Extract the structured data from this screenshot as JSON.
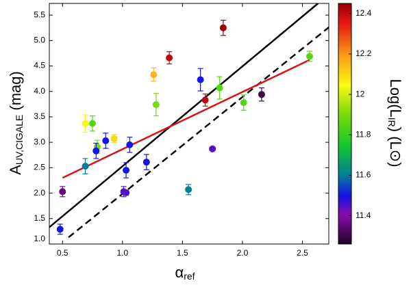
{
  "chart_data": {
    "type": "scatter",
    "x_label": {
      "main": "α",
      "sub": "ref"
    },
    "y_label": {
      "main": "A",
      "sub": "UV,CIGALE",
      "rest": " (mag)"
    },
    "colorbar_label": {
      "main": "Log(L",
      "sub": "IR",
      "rest": ") (L",
      "sun": "⊙",
      "end": ")"
    },
    "x": [
      0.48,
      0.5,
      0.69,
      0.75,
      0.69,
      0.79,
      0.78,
      0.86,
      0.93,
      1.01,
      1.03,
      1.03,
      1.06,
      1.2,
      1.28,
      1.26,
      1.39,
      1.55,
      1.65,
      1.69,
      1.75,
      1.81,
      1.84,
      2.01,
      2.16,
      2.56
    ],
    "values": [
      1.29,
      2.03,
      3.37,
      3.37,
      2.53,
      2.91,
      2.83,
      3.03,
      3.07,
      2.03,
      2.01,
      2.45,
      2.95,
      2.61,
      3.74,
      4.33,
      4.66,
      2.07,
      4.23,
      3.83,
      2.87,
      4.07,
      5.25,
      3.78,
      3.94,
      4.69
    ],
    "errors": [
      0.1,
      0.1,
      0.17,
      0.15,
      0.15,
      0.13,
      0.15,
      0.15,
      0.08,
      0.1,
      0.05,
      0.15,
      0.15,
      0.15,
      0.22,
      0.13,
      0.12,
      0.1,
      0.22,
      0.12,
      0.03,
      0.22,
      0.15,
      0.15,
      0.13,
      0.1
    ],
    "color_values": [
      11.5,
      11.35,
      12.05,
      11.85,
      11.6,
      11.9,
      11.5,
      11.5,
      12.1,
      11.45,
      11.45,
      11.5,
      11.5,
      11.5,
      11.9,
      12.15,
      12.4,
      11.6,
      11.5,
      12.4,
      11.45,
      11.85,
      12.45,
      11.85,
      11.3,
      11.85
    ],
    "lines": [
      {
        "color": "#000000",
        "dash": false,
        "x": [
          0.39,
          2.63
        ],
        "values": [
          1.33,
          5.73
        ]
      },
      {
        "color": "#000000",
        "dash": true,
        "x": [
          0.55,
          2.72
        ],
        "values": [
          1.13,
          5.26
        ]
      },
      {
        "color": "#dd1111",
        "dash": false,
        "x": [
          0.5,
          2.56
        ],
        "values": [
          2.3,
          4.62
        ]
      }
    ],
    "xlim": [
      0.39,
      2.72
    ],
    "ylim": [
      1.0,
      5.73
    ],
    "clim": [
      11.26,
      12.45
    ],
    "xticks": [
      0.5,
      {
        "value": 1,
        "label": "1.0"
      },
      1.5,
      {
        "value": 2,
        "label": "2.0"
      },
      2.5
    ],
    "yticks": [
      {
        "value": 1,
        "label": "1.0"
      },
      1.5,
      {
        "value": 2,
        "label": "2.0"
      },
      2.5,
      {
        "value": 3,
        "label": "3.0"
      },
      3.5,
      {
        "value": 4,
        "label": "4.0"
      },
      4.5,
      {
        "value": 5,
        "label": "5.0"
      },
      5.5
    ],
    "cticks": [
      11.4,
      11.6,
      11.8,
      12,
      12.2,
      12.4
    ]
  }
}
